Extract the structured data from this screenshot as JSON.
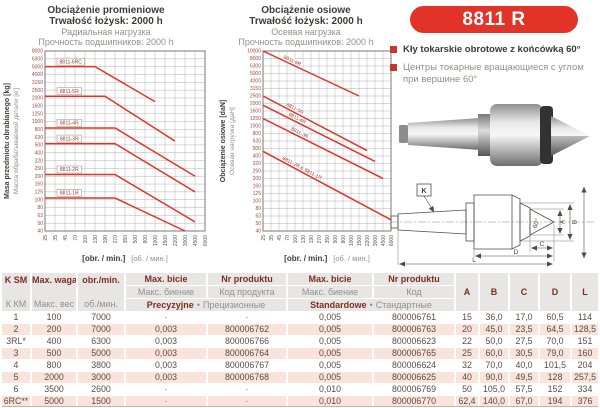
{
  "accent": {
    "red": "#e23328",
    "maroon": "#7c2d21",
    "dark": "#3c3c3a",
    "gray": "#90908e",
    "tick_red": "#a4493d",
    "tick_dark": "#55524e",
    "pink_row": "#fae3da",
    "header_bg": "#e7e6e4"
  },
  "product": {
    "badge": "8811 R",
    "bullets": [
      {
        "text": "Kły tokarskie obrotowe z końcówką 60°"
      },
      {
        "text": "Центры токарные вращающиеся с углом при вершине 60°"
      }
    ]
  },
  "chart_data": [
    {
      "type": "line",
      "titles": [
        "Obciążenie promieniowe",
        "Trwałość łożysk: 2000 h",
        "Радиальная нагрузка",
        "Прочность подшипников: 2000 h"
      ],
      "ylabel_pl": "Masa przedmiotu obrabianego [kg]",
      "ylabel_ru": "Масса обрабатываемой детали [кг]",
      "xlabel_pl": "[obr. / min.]",
      "xlabel_ru": "[об. / мин.]",
      "x_ticks": [
        25,
        35,
        45,
        70,
        100,
        130,
        190,
        270,
        350,
        500,
        800,
        1000,
        1500,
        2200,
        3000,
        4500,
        6000
      ],
      "y_ticks": [
        8000,
        6300,
        5000,
        4000,
        3150,
        2500,
        2000,
        1600,
        1250,
        1000,
        800,
        630,
        500,
        400,
        320,
        250,
        200,
        160,
        125,
        100,
        80,
        63,
        50,
        40
      ],
      "grid": true,
      "line_color": "#e23328",
      "series": [
        {
          "name": "8811-6RC",
          "points": [
            [
              25,
              5000
            ],
            [
              130,
              5000
            ],
            [
              1000,
              1800
            ]
          ]
        },
        {
          "name": "8811-5R",
          "points": [
            [
              25,
              2100
            ],
            [
              190,
              2100
            ],
            [
              2200,
              560
            ]
          ]
        },
        {
          "name": "8811-4R",
          "points": [
            [
              25,
              830
            ],
            [
              270,
              830
            ],
            [
              4500,
              200
            ]
          ]
        },
        {
          "name": "8811-3R",
          "points": [
            [
              25,
              520
            ],
            [
              270,
              520
            ],
            [
              4500,
              125
            ]
          ]
        },
        {
          "name": "8811-2R",
          "points": [
            [
              25,
              210
            ],
            [
              270,
              210
            ],
            [
              4500,
              52
            ]
          ]
        },
        {
          "name": "8811-1R",
          "points": [
            [
              25,
              105
            ],
            [
              270,
              105
            ],
            [
              3000,
              40
            ]
          ]
        }
      ]
    },
    {
      "type": "line",
      "titles": [
        "Obciążenie osiowe",
        "Trwałość łożysk: 2000 h",
        "Осевая нагрузка",
        "Прочность подшипников: 2000 h"
      ],
      "ylabel_pl": "Obciążenie osiowe [daN]",
      "ylabel_ru": "Осевая нагрузка [даН]",
      "xlabel_pl": "[obr. / min.]",
      "xlabel_ru": "[об. / мин.]",
      "x_ticks": [
        25,
        35,
        45,
        70,
        100,
        130,
        190,
        270,
        350,
        500,
        800,
        1000,
        1500,
        2200,
        3000,
        4500,
        6000
      ],
      "y_ticks": [
        10000,
        8000,
        6300,
        5000,
        4000,
        3150,
        2500,
        2000,
        1600,
        1250,
        1000,
        800,
        630,
        500,
        400,
        320,
        250,
        200,
        160,
        125,
        100,
        80,
        63,
        50,
        40
      ],
      "grid": true,
      "line_color": "#e23328",
      "series": [
        {
          "name": "8811-6R",
          "points": [
            [
              25,
              10000
            ],
            [
              1500,
              2500
            ]
          ]
        },
        {
          "name": "8811-5R",
          "points": [
            [
              25,
              2500
            ],
            [
              2200,
              470
            ]
          ]
        },
        {
          "name": "8811-4R",
          "points": [
            [
              25,
              1900
            ],
            [
              3000,
              340
            ]
          ]
        },
        {
          "name": "8811-3R",
          "points": [
            [
              25,
              1250
            ],
            [
              4500,
              200
            ]
          ]
        },
        {
          "name": "8811-2R & 8811-1R",
          "points": [
            [
              25,
              460
            ],
            [
              6000,
              56
            ]
          ]
        }
      ]
    }
  ],
  "drawing": {
    "k": "K",
    "angle": "60°",
    "dim_a": "A",
    "dim_b": "B",
    "dim_c": "C",
    "dim_d": "D",
    "dim_l": "L"
  },
  "table": {
    "header": {
      "k_pl": "K SM",
      "k_ru": "К КМ",
      "waga_pl": "Max. waga",
      "waga_ru": "Макс. вес",
      "rpm_pl": "obr./min.",
      "rpm_ru": "об./мин.",
      "bicie_pl": "Max. bicie",
      "bicie_ru": "Макс. биение",
      "nr_pl": "Nr produktu",
      "nr_ru_long": "Код продукта",
      "nr_ru_short": "Код",
      "prec_pl": "Precyzyjne",
      "prec_ru": "Прецизионные",
      "std_pl": "Standardowe",
      "std_ru": "Стандартные",
      "sep": "•",
      "dims": [
        "A",
        "B",
        "C",
        "D",
        "L"
      ]
    },
    "rows": [
      [
        "1",
        "100",
        "7000",
        "-",
        "-",
        "0,005",
        "800006761",
        "15",
        "36,0",
        "17,0",
        "60,5",
        "114"
      ],
      [
        "2",
        "200",
        "7000",
        "0,003",
        "800006762",
        "0,005",
        "800006763",
        "20",
        "45,0",
        "23,5",
        "64,5",
        "128,5"
      ],
      [
        "3RL*",
        "400",
        "6300",
        "0,003",
        "800006766",
        "0,005",
        "800006623",
        "22",
        "50,0",
        "27,5",
        "70,0",
        "151"
      ],
      [
        "3",
        "500",
        "5000",
        "0,003",
        "800006764",
        "0,005",
        "800006765",
        "25",
        "60,0",
        "30,5",
        "79,0",
        "160"
      ],
      [
        "4",
        "800",
        "3800",
        "0,003",
        "800006767",
        "0,005",
        "800006624",
        "32",
        "70,0",
        "40,0",
        "101,5",
        "204"
      ],
      [
        "5",
        "2000",
        "3000",
        "0,003",
        "800006768",
        "0,005",
        "800006625",
        "40",
        "90,0",
        "49,5",
        "128",
        "257,5"
      ],
      [
        "6",
        "3500",
        "2600",
        "-",
        "-",
        "0,010",
        "800006769",
        "50",
        "105,0",
        "57,5",
        "152",
        "334"
      ],
      [
        "6RC**",
        "5000",
        "1500",
        "-",
        "-",
        "0,010",
        "800006770",
        "62,4",
        "140,0",
        "67,0",
        "194",
        "376"
      ]
    ]
  }
}
